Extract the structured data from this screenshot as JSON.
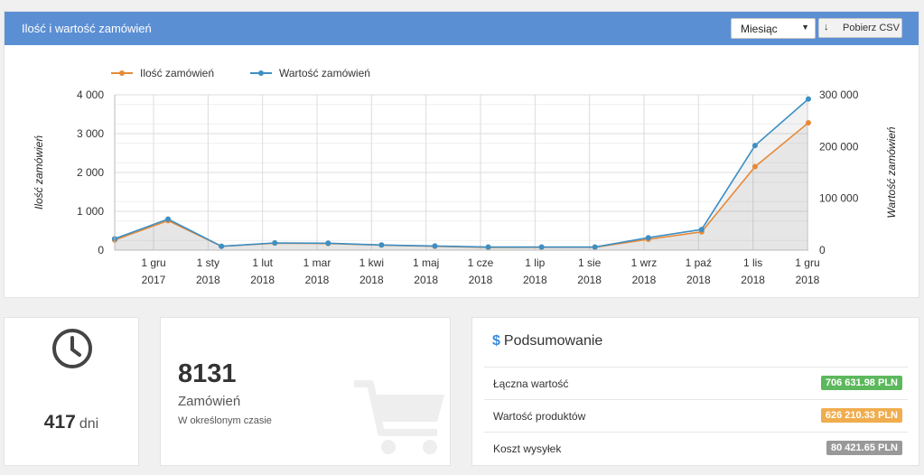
{
  "panel": {
    "title": "Ilość i wartość zamówień",
    "period_select": "Miesiąc",
    "csv_button": "Pobierz CSV"
  },
  "chart_data": {
    "type": "line",
    "legend_placement": "top-left",
    "grid": true,
    "x_labels": [
      [
        "1 gru",
        "2017"
      ],
      [
        "1 sty",
        "2018"
      ],
      [
        "1 lut",
        "2018"
      ],
      [
        "1 mar",
        "2018"
      ],
      [
        "1 kwi",
        "2018"
      ],
      [
        "1 maj",
        "2018"
      ],
      [
        "1 cze",
        "2018"
      ],
      [
        "1 lip",
        "2018"
      ],
      [
        "1 sie",
        "2018"
      ],
      [
        "1 wrz",
        "2018"
      ],
      [
        "1 paź",
        "2018"
      ],
      [
        "1 lis",
        "2018"
      ],
      [
        "1 gru",
        "2018"
      ]
    ],
    "y_left": {
      "label": "Ilość zamówień",
      "range": [
        0,
        4000
      ],
      "ticks": [
        "0",
        "1 000",
        "2 000",
        "3 000",
        "4 000"
      ]
    },
    "y_right": {
      "label": "Wartość zamówień",
      "range": [
        0,
        300000
      ],
      "ticks": [
        "0",
        "100 000",
        "200 000",
        "300 000"
      ]
    },
    "series": [
      {
        "name": "Ilość zamówień",
        "axis": "left",
        "color": "#e58a3a",
        "values": [
          260,
          760,
          100,
          180,
          170,
          130,
          100,
          70,
          75,
          75,
          280,
          470,
          2150,
          3280
        ]
      },
      {
        "name": "Wartość zamówień",
        "axis": "right",
        "color": "#3d8fc4",
        "values": [
          22000,
          60000,
          7500,
          14000,
          13500,
          10000,
          8000,
          6000,
          6000,
          6000,
          24000,
          40000,
          202000,
          292000
        ]
      }
    ]
  },
  "stats": {
    "days_value": "417",
    "days_unit": "dni",
    "orders_value": "8131",
    "orders_label": "Zamówień",
    "orders_sub": "W określonym czasie"
  },
  "summary": {
    "icon": "$",
    "title": "Podsumowanie",
    "rows": [
      {
        "label": "Łączna wartość",
        "value": "706 631.98 PLN",
        "color": "#5cb85c"
      },
      {
        "label": "Wartość produktów",
        "value": "626 210.33 PLN",
        "color": "#f0ad4e"
      },
      {
        "label": "Koszt wysyłek",
        "value": "80 421.65 PLN",
        "color": "#999999"
      }
    ]
  }
}
